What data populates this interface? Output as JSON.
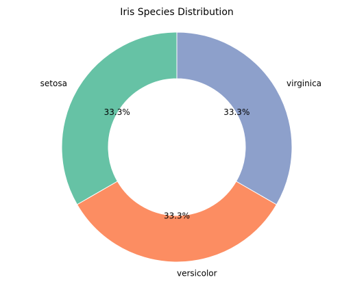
{
  "chart_data": {
    "type": "pie",
    "title": "Iris Species Distribution",
    "categories": [
      "setosa",
      "versicolor",
      "virginica"
    ],
    "values": [
      33.3,
      33.3,
      33.3
    ],
    "value_labels": [
      "33.3%",
      "33.3%",
      "33.3%"
    ],
    "colors": [
      "#66c2a5",
      "#fc8d62",
      "#8da0cb"
    ],
    "donut": true
  }
}
